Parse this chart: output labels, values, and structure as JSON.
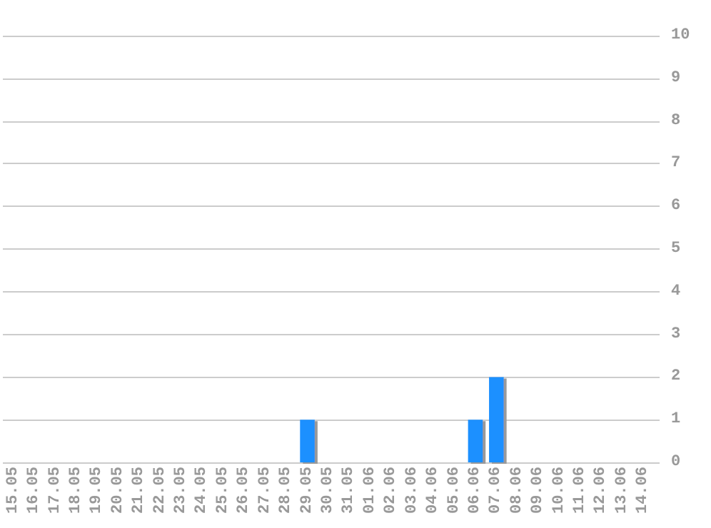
{
  "chart_data": {
    "type": "bar",
    "categories": [
      "15.05",
      "16.05",
      "17.05",
      "18.05",
      "19.05",
      "20.05",
      "21.05",
      "22.05",
      "23.05",
      "24.05",
      "25.05",
      "26.05",
      "27.05",
      "28.05",
      "29.05",
      "30.05",
      "31.05",
      "01.06",
      "02.06",
      "03.06",
      "04.06",
      "05.06",
      "06.06",
      "07.06",
      "08.06",
      "09.06",
      "10.06",
      "11.06",
      "12.06",
      "13.06",
      "14.06"
    ],
    "values": [
      0,
      0,
      0,
      0,
      0,
      0,
      0,
      0,
      0,
      0,
      0,
      0,
      0,
      0,
      1,
      0,
      0,
      0,
      0,
      0,
      0,
      0,
      1,
      2,
      0,
      0,
      0,
      0,
      0,
      0,
      0
    ],
    "color": "#1e90ff",
    "ylim": [
      0,
      10
    ],
    "yticks": [
      0,
      1,
      2,
      3,
      4,
      5,
      6,
      7,
      8,
      9,
      10
    ],
    "grid": "y"
  }
}
